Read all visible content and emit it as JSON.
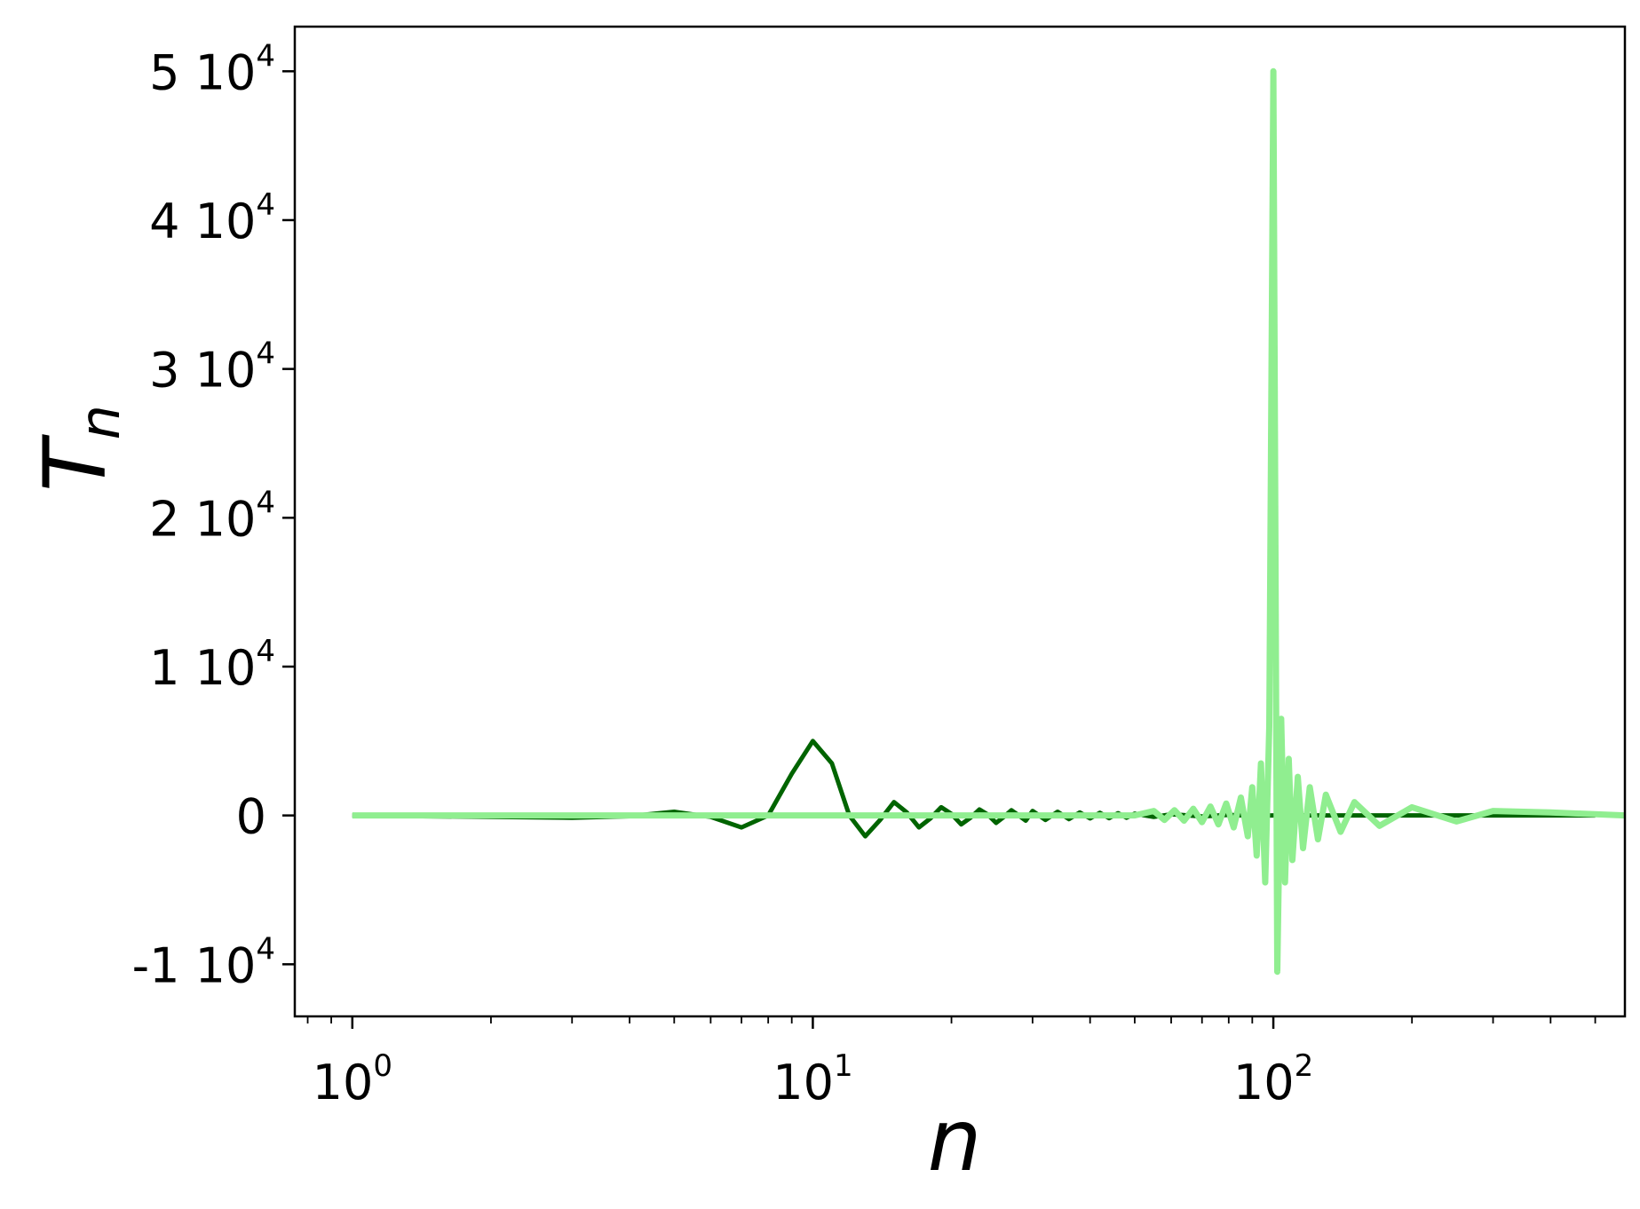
{
  "chart_data": {
    "type": "line",
    "title": "",
    "xlabel": "n",
    "ylabel": {
      "base": "T",
      "sub": "n"
    },
    "xscale": "log",
    "xlim": [
      0.75,
      580
    ],
    "ylim": [
      -13500,
      53000
    ],
    "grid": false,
    "x_ticks": [
      {
        "value": 1,
        "base": "10",
        "exp": "0"
      },
      {
        "value": 10,
        "base": "10",
        "exp": "1"
      },
      {
        "value": 100,
        "base": "10",
        "exp": "2"
      }
    ],
    "y_ticks": [
      {
        "value": 50000,
        "mant": "5",
        "base": "10",
        "exp": "4"
      },
      {
        "value": 40000,
        "mant": "4",
        "base": "10",
        "exp": "4"
      },
      {
        "value": 30000,
        "mant": "3",
        "base": "10",
        "exp": "4"
      },
      {
        "value": 20000,
        "mant": "2",
        "base": "10",
        "exp": "4"
      },
      {
        "value": 10000,
        "mant": "1",
        "base": "10",
        "exp": "4"
      },
      {
        "value": 0,
        "mant": "",
        "base": "0",
        "exp": ""
      },
      {
        "value": -10000,
        "mant": "-1",
        "base": "10",
        "exp": "4"
      }
    ],
    "series": [
      {
        "color": "#006400",
        "x": [
          1,
          2,
          3,
          4,
          5,
          6,
          7,
          8,
          9,
          10,
          11,
          12,
          13,
          14,
          15,
          16,
          17,
          18,
          19,
          20,
          21,
          22,
          23,
          24,
          25,
          26,
          27,
          28,
          29,
          30,
          32,
          34,
          36,
          38,
          40,
          42,
          44,
          46,
          48,
          50,
          55,
          60,
          70,
          80,
          90,
          100,
          120,
          150,
          200,
          300,
          500
        ],
        "y": [
          0,
          -100,
          -150,
          -50,
          250,
          -100,
          -800,
          0,
          2800,
          5000,
          3500,
          0,
          -1400,
          -300,
          900,
          200,
          -800,
          -200,
          550,
          100,
          -600,
          -150,
          400,
          50,
          -500,
          -100,
          350,
          0,
          -350,
          300,
          -300,
          250,
          -250,
          200,
          -200,
          180,
          -180,
          150,
          -150,
          120,
          -100,
          80,
          -60,
          40,
          -30,
          0,
          0,
          0,
          0,
          0,
          0
        ]
      },
      {
        "color": "#90ee90",
        "x": [
          1,
          10,
          30,
          50,
          55,
          58,
          61,
          64,
          67,
          70,
          73,
          76,
          79,
          82,
          85,
          88,
          90,
          92,
          94,
          96,
          98,
          100,
          102,
          104,
          106,
          108,
          110,
          113,
          116,
          120,
          125,
          130,
          140,
          150,
          170,
          200,
          250,
          300,
          400,
          580
        ],
        "y": [
          0,
          0,
          0,
          0,
          300,
          -300,
          350,
          -350,
          450,
          -450,
          600,
          -600,
          800,
          -800,
          1200,
          -1400,
          1900,
          -2700,
          3500,
          -4500,
          6000,
          50000,
          -10500,
          6500,
          -4500,
          3800,
          -3000,
          2600,
          -2200,
          1900,
          -1600,
          1400,
          -1100,
          900,
          -700,
          550,
          -400,
          300,
          200,
          0
        ]
      }
    ]
  }
}
